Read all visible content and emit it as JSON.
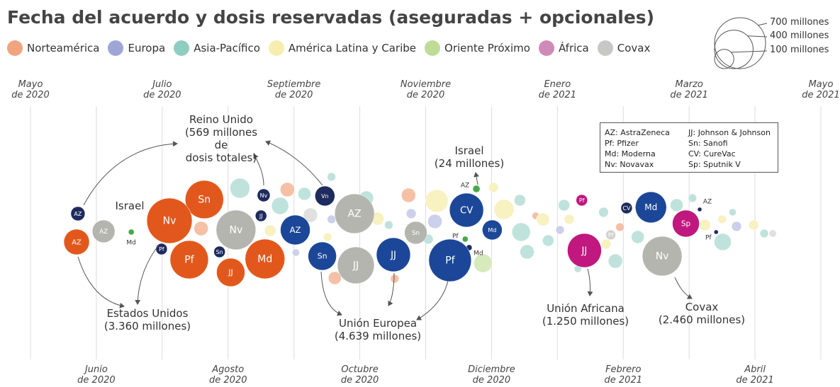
{
  "chart_data": {
    "type": "bubble",
    "title": "Fecha del acuerdo y dosis reservadas (aseguradas + opcionales)",
    "regions": [
      {
        "name": "Norteamérica",
        "color": "#f0a47f"
      },
      {
        "name": "Europa",
        "color": "#9fa6d6"
      },
      {
        "name": "Asia-Pacífico",
        "color": "#8fcdc2"
      },
      {
        "name": "América Latina y Caribe",
        "color": "#f6eeae"
      },
      {
        "name": "Oriente Próximo",
        "color": "#bfdc97"
      },
      {
        "name": "África",
        "color": "#cf8ab7"
      },
      {
        "name": "Covax",
        "color": "#c7c7c3"
      }
    ],
    "size_legend": [
      {
        "value": 700,
        "label": "700 millones"
      },
      {
        "value": 400,
        "label": "400 millones"
      },
      {
        "value": 100,
        "label": "100 millones"
      }
    ],
    "xlim": [
      0,
      12
    ],
    "xticks": [
      {
        "value": 0,
        "label": "Mayo\nde 2020"
      },
      {
        "value": 1,
        "label": "Junio\nde 2020"
      },
      {
        "value": 2,
        "label": "Julio\nde 2020"
      },
      {
        "value": 3,
        "label": "Agosto\nde 2020"
      },
      {
        "value": 4,
        "label": "Septiembre\nde 2020"
      },
      {
        "value": 5,
        "label": "Octubre\nde 2020"
      },
      {
        "value": 6,
        "label": "Noviembre\nde 2020"
      },
      {
        "value": 7,
        "label": "Diciembre\nde 2020"
      },
      {
        "value": 8,
        "label": "Enero\nde 2021"
      },
      {
        "value": 9,
        "label": "Febrero\nde 2021"
      },
      {
        "value": 10,
        "label": "Marzo\nde 2021"
      },
      {
        "value": 11,
        "label": "Abril\nde 2021"
      },
      {
        "value": 12,
        "label": "Mayo\nde 2021"
      }
    ],
    "grid": true,
    "key": [
      "AZ: AstraZeneca",
      "Pf: Pfizer",
      "Md: Moderna",
      "Nv: Novavax",
      "JJ: Johnson & Johnson",
      "Sn: Sanofi",
      "CV: CureVac",
      "Sp: Sputnik V"
    ],
    "annotations": [
      "Reino Unido\n(569 millones de\ndosis totales)",
      "Israel",
      "Estados Unidos\n(3.360 millones)",
      "Israel\n(24 millones)",
      "Unión Europea\n(4.639 millones)",
      "Unión Africana\n(1.250 millones)",
      "Covax\n(2.460 millones)"
    ],
    "points": [
      {
        "label": "AZ",
        "x": 0.7,
        "size": 175,
        "color": "#e2581c"
      },
      {
        "label": "Nv",
        "x": 2.11,
        "size": 553,
        "color": "#e2581c"
      },
      {
        "label": "Sn",
        "x": 2.64,
        "size": 394,
        "color": "#e2581c"
      },
      {
        "label": "Pf",
        "x": 2.41,
        "size": 394,
        "color": "#e2581c"
      },
      {
        "label": "JJ",
        "x": 3.04,
        "size": 216,
        "color": "#e2581c"
      },
      {
        "label": "Md",
        "x": 3.56,
        "size": 423,
        "color": "#e2581c"
      },
      {
        "label": "AZ",
        "x": 0.72,
        "size": 54,
        "color": "#1e2b5e"
      },
      {
        "label": "Pf",
        "x": 1.99,
        "size": 35,
        "color": "#1e2b5e"
      },
      {
        "label": "Nv",
        "x": 3.54,
        "size": 44,
        "color": "#1e2b5e"
      },
      {
        "label": "JJ",
        "x": 3.5,
        "size": 35,
        "color": "#1e2b5e"
      },
      {
        "label": "Sn",
        "x": 2.87,
        "size": 35,
        "color": "#1e2b5e"
      },
      {
        "label": "Vn",
        "x": 4.47,
        "size": 106,
        "color": "#1e2b5e"
      },
      {
        "label": "CV",
        "x": 9.05,
        "size": 35,
        "color": "#1e2b5e"
      },
      {
        "label": "AZ",
        "x": 1.11,
        "size": 138,
        "color": "#b5b5b0"
      },
      {
        "label": "Nv",
        "x": 3.12,
        "size": 423,
        "color": "#b5b5b0"
      },
      {
        "label": "AZ",
        "x": 4.92,
        "size": 423,
        "color": "#b5b5b0"
      },
      {
        "label": "JJ",
        "x": 4.94,
        "size": 365,
        "color": "#b5b5b0"
      },
      {
        "label": "Sn",
        "x": 5.85,
        "size": 138,
        "color": "#b5b5b0"
      },
      {
        "label": "Nv",
        "x": 9.59,
        "size": 423,
        "color": "#b5b5b0"
      },
      {
        "label": "Pf",
        "x": 8.81,
        "size": 26,
        "color": "#d2d2ce"
      },
      {
        "label": "AZ",
        "x": 4.02,
        "size": 238,
        "color": "#1c4798"
      },
      {
        "label": "Sn",
        "x": 4.43,
        "size": 216,
        "color": "#1c4798"
      },
      {
        "label": "JJ",
        "x": 5.51,
        "size": 311,
        "color": "#1c4798"
      },
      {
        "label": "CV",
        "x": 6.62,
        "size": 311,
        "color": "#1c4798"
      },
      {
        "label": "Md",
        "x": 7.01,
        "size": 106,
        "color": "#1c4798"
      },
      {
        "label": "Pf",
        "x": 6.37,
        "size": 486,
        "color": "#1c4798"
      },
      {
        "label": "Md",
        "x": 9.42,
        "size": 261,
        "color": "#1c4798"
      },
      {
        "label": "Md",
        "x": 1.53,
        "size": 9,
        "color": "#4aa84a"
      },
      {
        "label": "AZ",
        "x": 6.77,
        "size": 14,
        "color": "#4aa84a"
      },
      {
        "label": "Pf",
        "x": 6.6,
        "size": 9,
        "color": "#4aa84a"
      },
      {
        "label": "Md",
        "x": 6.66,
        "size": 9,
        "color": "#1e2b5e"
      },
      {
        "label": "Pf",
        "x": 8.37,
        "size": 35,
        "color": "#c0187e"
      },
      {
        "label": "JJ",
        "x": 8.41,
        "size": 311,
        "color": "#c0187e"
      },
      {
        "label": "Sp",
        "x": 9.95,
        "size": 195,
        "color": "#c0187e"
      },
      {
        "label": "AZ",
        "x": 10.16,
        "size": 5,
        "color": "#1e2b5e"
      },
      {
        "label": "Pf",
        "x": 10.41,
        "size": 5,
        "color": "#1e2b5e"
      },
      {
        "label": null,
        "x": 2.59,
        "size": 54,
        "color": "#f5c0a6"
      },
      {
        "label": null,
        "x": 3.18,
        "size": 106,
        "color": "#bfe3dc"
      },
      {
        "label": null,
        "x": 3.79,
        "size": 78,
        "color": "#bfe3dc"
      },
      {
        "label": null,
        "x": 3.9,
        "size": 54,
        "color": "#f5c0a6"
      },
      {
        "label": null,
        "x": 3.64,
        "size": 35,
        "color": "#f8f1c0"
      },
      {
        "label": null,
        "x": 4.16,
        "size": 44,
        "color": "#bfe3dc"
      },
      {
        "label": null,
        "x": 4.25,
        "size": 54,
        "color": "#e0e0dc"
      },
      {
        "label": null,
        "x": 4.57,
        "size": 19,
        "color": "#cdd0ea"
      },
      {
        "label": null,
        "x": 4.51,
        "size": 19,
        "color": "#f8f1c0"
      },
      {
        "label": null,
        "x": 4.03,
        "size": 14,
        "color": "#cdd0ea"
      },
      {
        "label": null,
        "x": 4.62,
        "size": 44,
        "color": "#f5c0a6"
      },
      {
        "label": null,
        "x": 5.1,
        "size": 54,
        "color": "#bfe3dc"
      },
      {
        "label": null,
        "x": 5.27,
        "size": 44,
        "color": "#f8f1c0"
      },
      {
        "label": null,
        "x": 5.44,
        "size": 19,
        "color": "#bfe3dc"
      },
      {
        "label": null,
        "x": 5.74,
        "size": 54,
        "color": "#f5c0a6"
      },
      {
        "label": null,
        "x": 5.78,
        "size": 26,
        "color": "#cdd0ea"
      },
      {
        "label": null,
        "x": 6.17,
        "size": 138,
        "color": "#f8f1c0"
      },
      {
        "label": null,
        "x": 6.14,
        "size": 54,
        "color": "#cdd0ea"
      },
      {
        "label": null,
        "x": 6.04,
        "size": 26,
        "color": "#bfe3dc"
      },
      {
        "label": null,
        "x": 7.03,
        "size": 26,
        "color": "#f8f1c0"
      },
      {
        "label": null,
        "x": 7.19,
        "size": 106,
        "color": "#f8f1c0"
      },
      {
        "label": null,
        "x": 7.43,
        "size": 35,
        "color": "#bfe3dc"
      },
      {
        "label": null,
        "x": 7.45,
        "size": 91,
        "color": "#bfe3dc"
      },
      {
        "label": null,
        "x": 7.54,
        "size": 54,
        "color": "#bfe3dc"
      },
      {
        "label": null,
        "x": 6.87,
        "size": 91,
        "color": "#d6eabb"
      },
      {
        "label": null,
        "x": 7.78,
        "size": 44,
        "color": "#f8f1c0"
      },
      {
        "label": null,
        "x": 7.86,
        "size": 35,
        "color": "#bfe3dc"
      },
      {
        "label": null,
        "x": 8.1,
        "size": 35,
        "color": "#bfe3dc"
      },
      {
        "label": null,
        "x": 8.04,
        "size": 19,
        "color": "#cdd0ea"
      },
      {
        "label": null,
        "x": 8.18,
        "size": 26,
        "color": "#f8f1c0"
      },
      {
        "label": null,
        "x": 8.7,
        "size": 26,
        "color": "#bfe3dc"
      },
      {
        "label": null,
        "x": 8.74,
        "size": 26,
        "color": "#f8f1c0"
      },
      {
        "label": null,
        "x": 8.88,
        "size": 54,
        "color": "#bfe3dc"
      },
      {
        "label": null,
        "x": 8.95,
        "size": 19,
        "color": "#f5c0a6"
      },
      {
        "label": null,
        "x": 9.22,
        "size": 44,
        "color": "#bfe3dc"
      },
      {
        "label": null,
        "x": 9.81,
        "size": 44,
        "color": "#bfe3dc"
      },
      {
        "label": null,
        "x": 10.05,
        "size": 19,
        "color": "#bfe3dc"
      },
      {
        "label": null,
        "x": 10.24,
        "size": 35,
        "color": "#f8f1c0"
      },
      {
        "label": null,
        "x": 10.51,
        "size": 78,
        "color": "#bfe3dc"
      },
      {
        "label": null,
        "x": 10.5,
        "size": 19,
        "color": "#f8f1c0"
      },
      {
        "label": null,
        "x": 10.72,
        "size": 26,
        "color": "#cdd0ea"
      },
      {
        "label": null,
        "x": 10.98,
        "size": 26,
        "color": "#f8f1c0"
      },
      {
        "label": null,
        "x": 11.14,
        "size": 19,
        "color": "#bfe3dc"
      },
      {
        "label": null,
        "x": 11.27,
        "size": 14,
        "color": "#e0e0dc"
      },
      {
        "label": null,
        "x": 7.67,
        "size": 14,
        "color": "#f5c0a6"
      },
      {
        "label": null,
        "x": 8.31,
        "size": 14,
        "color": "#bfe3dc"
      },
      {
        "label": null,
        "x": 10.66,
        "size": 14,
        "color": "#bfe3dc"
      },
      {
        "label": null,
        "x": 5.53,
        "size": 19,
        "color": "#f5c0a6"
      },
      {
        "label": null,
        "x": 6.6,
        "size": 19,
        "color": "#bfe3dc"
      },
      {
        "label": null,
        "x": 4.57,
        "size": 19,
        "color": "#bfe3dc"
      }
    ]
  }
}
